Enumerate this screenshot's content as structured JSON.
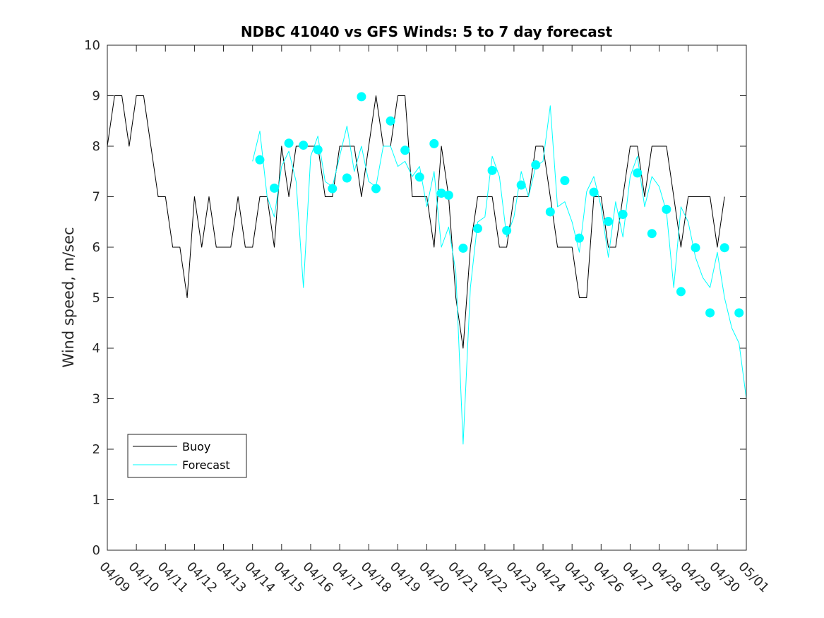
{
  "chart_data": {
    "type": "line",
    "title": "NDBC 41040 vs GFS Winds: 5 to 7 day forecast",
    "xlabel": "",
    "ylabel": "Wind speed, m/sec",
    "xlim": [
      0,
      22
    ],
    "ylim": [
      0,
      10
    ],
    "x_ticks": [
      "04/09",
      "04/10",
      "04/11",
      "04/12",
      "04/13",
      "04/14",
      "04/15",
      "04/16",
      "04/17",
      "04/18",
      "04/19",
      "04/20",
      "04/21",
      "04/22",
      "04/23",
      "04/24",
      "04/25",
      "04/26",
      "04/27",
      "04/28",
      "04/29",
      "04/30",
      "05/01"
    ],
    "y_ticks": [
      0,
      1,
      2,
      3,
      4,
      5,
      6,
      7,
      8,
      9,
      10
    ],
    "legend": {
      "location": "lower-left",
      "entries": [
        {
          "label": "Buoy",
          "color": "#000000"
        },
        {
          "label": "Forecast",
          "color": "#00ffff"
        }
      ]
    },
    "series": [
      {
        "name": "Buoy",
        "color": "#000000",
        "style": "line",
        "x": [
          0.0,
          0.25,
          0.5,
          0.75,
          1.0,
          1.25,
          1.5,
          1.75,
          2.0,
          2.25,
          2.5,
          2.75,
          3.0,
          3.25,
          3.5,
          3.75,
          4.0,
          4.25,
          4.5,
          4.75,
          5.0,
          5.25,
          5.5,
          5.75,
          6.0,
          6.25,
          6.5,
          6.75,
          7.0,
          7.25,
          7.5,
          7.75,
          8.0,
          8.25,
          8.5,
          8.75,
          9.0,
          9.25,
          9.5,
          9.75,
          10.0,
          10.25,
          10.5,
          10.75,
          11.0,
          11.25,
          11.5,
          11.75,
          12.0,
          12.25,
          12.5,
          12.75,
          13.0,
          13.25,
          13.5,
          13.75,
          14.0,
          14.25,
          14.5,
          14.75,
          15.0,
          15.25,
          15.5,
          15.75,
          16.0,
          16.25,
          16.5,
          16.75,
          17.0,
          17.25,
          17.5,
          17.75,
          18.0,
          18.25,
          18.5,
          18.75,
          19.0,
          19.25,
          19.5,
          19.75,
          20.0,
          20.25,
          20.5,
          20.75,
          21.0,
          21.25
        ],
        "y": [
          8,
          9,
          9,
          8,
          9,
          9,
          8,
          7,
          7,
          6,
          6,
          5,
          7,
          6,
          7,
          6,
          6,
          6,
          7,
          6,
          6,
          7,
          7,
          6,
          8,
          7,
          8,
          8,
          8,
          8,
          7,
          7,
          8,
          8,
          8,
          7,
          8,
          9,
          8,
          8,
          9,
          9,
          7,
          7,
          7,
          6,
          8,
          7,
          5,
          4,
          6,
          7,
          7,
          7,
          6,
          6,
          7,
          7,
          7,
          8,
          8,
          7,
          6,
          6,
          6,
          5,
          5,
          7,
          7,
          6,
          6,
          7,
          8,
          8,
          7,
          8,
          8,
          8,
          7,
          6,
          7,
          7,
          7,
          7,
          6,
          7
        ]
      },
      {
        "name": "Forecast",
        "color": "#00ffff",
        "style": "line",
        "x": [
          5.0,
          5.25,
          5.5,
          5.75,
          6.0,
          6.25,
          6.5,
          6.75,
          7.0,
          7.25,
          7.5,
          7.75,
          8.0,
          8.25,
          8.5,
          8.75,
          9.0,
          9.25,
          9.5,
          9.75,
          10.0,
          10.25,
          10.5,
          10.75,
          11.0,
          11.25,
          11.5,
          11.75,
          12.0,
          12.25,
          12.5,
          12.75,
          13.0,
          13.25,
          13.5,
          13.75,
          14.0,
          14.25,
          14.5,
          14.75,
          15.0,
          15.25,
          15.5,
          15.75,
          16.0,
          16.25,
          16.5,
          16.75,
          17.0,
          17.25,
          17.5,
          17.75,
          18.0,
          18.25,
          18.5,
          18.75,
          19.0,
          19.25,
          19.5,
          19.75,
          20.0,
          20.25,
          20.5,
          20.75,
          21.0,
          21.25,
          21.5,
          21.75,
          22.0
        ],
        "y": [
          7.7,
          8.3,
          7.0,
          6.6,
          7.6,
          7.9,
          7.3,
          5.2,
          7.8,
          8.2,
          7.3,
          7.2,
          7.8,
          8.4,
          7.5,
          8.0,
          7.3,
          7.2,
          8.0,
          8.0,
          7.6,
          7.7,
          7.4,
          7.6,
          6.8,
          7.5,
          6.0,
          6.4,
          5.5,
          2.1,
          5.2,
          6.5,
          6.6,
          7.8,
          7.4,
          6.2,
          6.6,
          7.5,
          7.0,
          7.6,
          7.7,
          8.8,
          6.8,
          6.9,
          6.5,
          5.9,
          7.1,
          7.4,
          6.8,
          5.8,
          6.9,
          6.2,
          7.4,
          7.8,
          6.8,
          7.4,
          7.2,
          6.7,
          5.2,
          6.8,
          6.5,
          5.8,
          5.4,
          5.2,
          5.9,
          5.0,
          4.4,
          4.1,
          3.0
        ]
      },
      {
        "name": "Forecast markers",
        "color": "#00ffff",
        "style": "markers",
        "x": [
          5.25,
          5.75,
          6.25,
          6.75,
          7.25,
          7.75,
          8.25,
          8.75,
          9.25,
          9.75,
          10.25,
          10.75,
          11.25,
          11.5,
          11.75,
          12.25,
          12.75,
          13.25,
          13.75,
          14.25,
          14.75,
          15.25,
          15.75,
          16.25,
          16.75,
          17.25,
          17.75,
          18.25,
          18.75,
          19.25,
          19.75,
          20.25,
          20.75,
          21.25,
          21.75
        ],
        "y": [
          7.73,
          7.17,
          8.06,
          8.02,
          7.93,
          7.16,
          7.37,
          8.98,
          7.16,
          8.5,
          7.92,
          7.39,
          8.05,
          7.07,
          7.03,
          5.98,
          6.37,
          7.52,
          6.33,
          7.23,
          7.63,
          6.7,
          7.32,
          6.18,
          7.09,
          6.51,
          6.65,
          7.47,
          6.27,
          6.75,
          5.12,
          5.99,
          4.7,
          5.99,
          4.7
        ]
      }
    ]
  }
}
